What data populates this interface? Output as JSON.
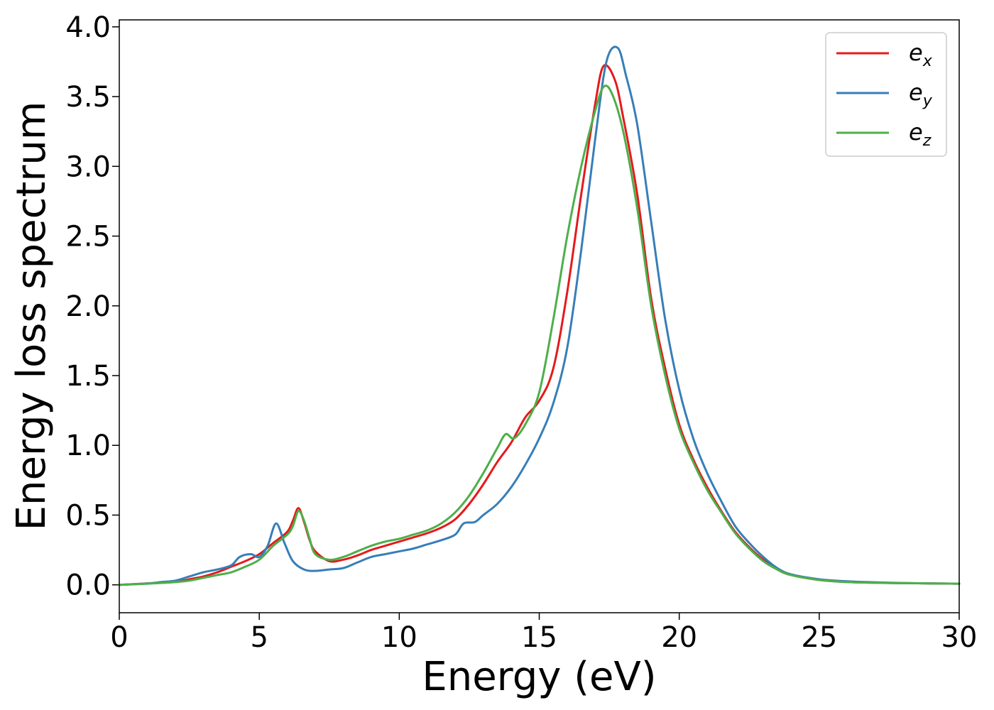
{
  "chart_data": {
    "type": "line",
    "xlabel": "Energy (eV)",
    "ylabel": "Energy loss spectrum",
    "xlim": [
      0,
      30
    ],
    "ylim": [
      -0.2,
      4.05
    ],
    "x_ticks": [
      0,
      5,
      10,
      15,
      20,
      25,
      30
    ],
    "x_tick_labels": [
      "0",
      "5",
      "10",
      "15",
      "20",
      "25",
      "30"
    ],
    "y_ticks": [
      0.0,
      0.5,
      1.0,
      1.5,
      2.0,
      2.5,
      3.0,
      3.5,
      4.0
    ],
    "y_tick_labels": [
      "0.0",
      "0.5",
      "1.0",
      "1.5",
      "2.0",
      "2.5",
      "3.0",
      "3.5",
      "4.0"
    ],
    "grid": false,
    "legend_position": "top-right",
    "series": [
      {
        "name": "e_x",
        "label_base": "e",
        "label_sub": "x",
        "color": "#e41a1c",
        "x": [
          0,
          1,
          2,
          2.5,
          3,
          3.5,
          4,
          4.5,
          5,
          5.5,
          6,
          6.2,
          6.4,
          6.6,
          6.8,
          7,
          7.5,
          8,
          8.5,
          9,
          9.5,
          10,
          10.5,
          11,
          11.5,
          12,
          12.5,
          13,
          13.5,
          14,
          14.5,
          15,
          15.5,
          16,
          16.5,
          17,
          17.3,
          17.7,
          18,
          18.5,
          19,
          19.5,
          20,
          20.5,
          21,
          21.5,
          22,
          22.5,
          23,
          23.5,
          24,
          25,
          26,
          27,
          28,
          29,
          30
        ],
        "y": [
          0,
          0.01,
          0.02,
          0.04,
          0.06,
          0.09,
          0.13,
          0.17,
          0.22,
          0.3,
          0.38,
          0.46,
          0.55,
          0.45,
          0.32,
          0.24,
          0.17,
          0.18,
          0.21,
          0.25,
          0.28,
          0.31,
          0.34,
          0.37,
          0.41,
          0.47,
          0.58,
          0.72,
          0.88,
          1.02,
          1.2,
          1.32,
          1.55,
          2.1,
          2.8,
          3.45,
          3.72,
          3.62,
          3.35,
          2.8,
          2.05,
          1.55,
          1.15,
          0.9,
          0.7,
          0.53,
          0.38,
          0.27,
          0.18,
          0.11,
          0.07,
          0.035,
          0.02,
          0.015,
          0.012,
          0.01,
          0.008
        ]
      },
      {
        "name": "e_y",
        "label_base": "e",
        "label_sub": "y",
        "color": "#377eb8",
        "x": [
          0,
          1,
          1.5,
          2,
          2.5,
          3,
          3.5,
          4,
          4.3,
          4.7,
          5,
          5.3,
          5.6,
          5.9,
          6.2,
          6.6,
          7,
          7.5,
          8,
          8.5,
          9,
          9.5,
          10,
          10.5,
          11,
          11.5,
          12,
          12.3,
          12.7,
          13,
          13.5,
          14,
          14.5,
          15,
          15.5,
          16,
          16.5,
          17,
          17.4,
          17.8,
          18.1,
          18.5,
          19,
          19.5,
          20,
          20.5,
          21,
          21.5,
          22,
          22.5,
          23,
          23.5,
          24,
          25,
          26,
          27,
          28,
          29,
          30
        ],
        "y": [
          0,
          0.01,
          0.02,
          0.03,
          0.06,
          0.09,
          0.11,
          0.14,
          0.2,
          0.22,
          0.2,
          0.28,
          0.44,
          0.3,
          0.17,
          0.11,
          0.1,
          0.11,
          0.12,
          0.16,
          0.2,
          0.22,
          0.24,
          0.26,
          0.29,
          0.32,
          0.36,
          0.44,
          0.45,
          0.5,
          0.58,
          0.7,
          0.86,
          1.05,
          1.3,
          1.7,
          2.4,
          3.2,
          3.75,
          3.85,
          3.65,
          3.3,
          2.6,
          1.9,
          1.4,
          1.05,
          0.8,
          0.6,
          0.42,
          0.3,
          0.2,
          0.12,
          0.075,
          0.04,
          0.025,
          0.018,
          0.013,
          0.01,
          0.008
        ]
      },
      {
        "name": "e_z",
        "label_base": "e",
        "label_sub": "z",
        "color": "#4daf4a",
        "x": [
          0,
          1,
          2,
          2.5,
          3,
          3.5,
          4,
          4.5,
          5,
          5.5,
          6,
          6.2,
          6.4,
          6.6,
          6.8,
          7,
          7.5,
          8,
          8.5,
          9,
          9.5,
          10,
          10.5,
          11,
          11.5,
          12,
          12.5,
          13,
          13.5,
          13.8,
          14.1,
          14.5,
          15,
          15.5,
          16,
          16.5,
          17,
          17.3,
          17.6,
          18,
          18.5,
          19,
          19.5,
          20,
          20.5,
          21,
          21.5,
          22,
          22.5,
          23,
          23.5,
          24,
          25,
          26,
          27,
          28,
          29,
          30
        ],
        "y": [
          0,
          0.008,
          0.02,
          0.03,
          0.05,
          0.07,
          0.09,
          0.13,
          0.18,
          0.28,
          0.36,
          0.42,
          0.53,
          0.46,
          0.33,
          0.22,
          0.18,
          0.2,
          0.24,
          0.28,
          0.31,
          0.33,
          0.36,
          0.39,
          0.44,
          0.52,
          0.64,
          0.8,
          0.98,
          1.08,
          1.05,
          1.15,
          1.38,
          1.9,
          2.5,
          3.0,
          3.4,
          3.57,
          3.52,
          3.25,
          2.7,
          2.0,
          1.5,
          1.12,
          0.88,
          0.68,
          0.52,
          0.37,
          0.26,
          0.17,
          0.11,
          0.07,
          0.035,
          0.02,
          0.015,
          0.012,
          0.01,
          0.008
        ]
      }
    ]
  }
}
